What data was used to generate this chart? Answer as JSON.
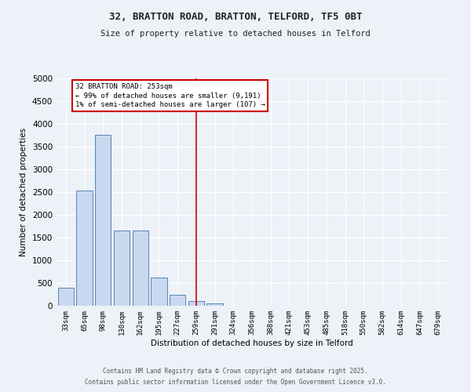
{
  "title1": "32, BRATTON ROAD, BRATTON, TELFORD, TF5 0BT",
  "title2": "Size of property relative to detached houses in Telford",
  "xlabel": "Distribution of detached houses by size in Telford",
  "ylabel": "Number of detached properties",
  "categories": [
    "33sqm",
    "65sqm",
    "98sqm",
    "130sqm",
    "162sqm",
    "195sqm",
    "227sqm",
    "259sqm",
    "291sqm",
    "324sqm",
    "356sqm",
    "388sqm",
    "421sqm",
    "453sqm",
    "485sqm",
    "518sqm",
    "550sqm",
    "582sqm",
    "614sqm",
    "647sqm",
    "679sqm"
  ],
  "values": [
    390,
    2530,
    3760,
    1650,
    1650,
    620,
    240,
    105,
    45,
    0,
    0,
    0,
    0,
    0,
    0,
    0,
    0,
    0,
    0,
    0,
    0
  ],
  "bar_color": "#c8d8ee",
  "bar_edge_color": "#5585b5",
  "vline_index": 7,
  "vline_color": "#cc0000",
  "ylim": [
    0,
    5000
  ],
  "yticks": [
    0,
    500,
    1000,
    1500,
    2000,
    2500,
    3000,
    3500,
    4000,
    4500,
    5000
  ],
  "annotation_line1": "32 BRATTON ROAD: 253sqm",
  "annotation_line2": "← 99% of detached houses are smaller (9,191)",
  "annotation_line3": "1% of semi-detached houses are larger (107) →",
  "annotation_box_color": "#ffffff",
  "annotation_box_edge": "#cc0000",
  "footer1": "Contains HM Land Registry data © Crown copyright and database right 2025.",
  "footer2": "Contains public sector information licensed under the Open Government Licence v3.0.",
  "bg_color": "#edf1f8",
  "grid_color": "#ffffff"
}
